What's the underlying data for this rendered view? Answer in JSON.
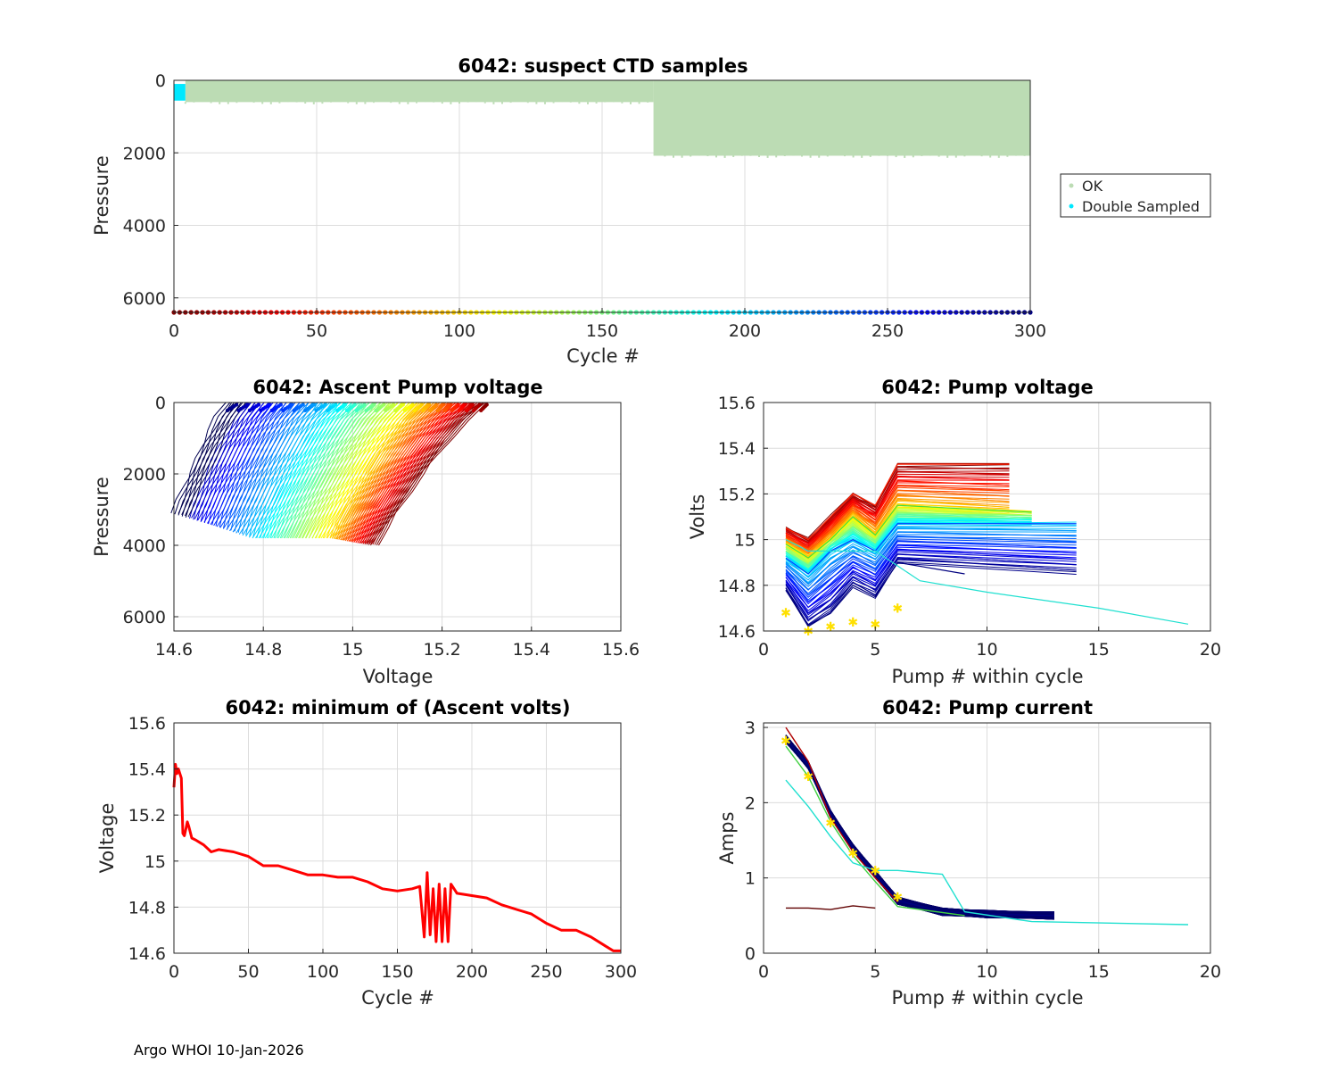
{
  "footer": "Argo WHOI 10-Jan-2026",
  "chart_data": [
    {
      "id": "ctd",
      "type": "scatter",
      "title": "6042: suspect CTD samples",
      "xlabel": "Cycle #",
      "ylabel": "Pressure",
      "xlim": [
        0,
        300
      ],
      "ylim": [
        6400,
        0
      ],
      "xticks": [
        "0",
        "50",
        "100",
        "150",
        "200",
        "250",
        "300"
      ],
      "yticks": [
        "0",
        "2000",
        "4000",
        "6000"
      ],
      "legend": {
        "position": "outside-right",
        "entries": [
          "OK",
          "Double Sampled"
        ],
        "colors": [
          "#bcdcb4",
          "#00e8ff"
        ]
      },
      "series": [
        {
          "name": "OK",
          "color": "#bcdcb4",
          "regions": [
            {
              "x": [
                4,
                168
              ],
              "p": [
                0,
                600
              ]
            },
            {
              "x": [
                168,
                300
              ],
              "p": [
                0,
                2080
              ]
            }
          ]
        },
        {
          "name": "Double Sampled",
          "color": "#00e8ff",
          "regions": [
            {
              "x": [
                0,
                4
              ],
              "p": [
                100,
                560
              ]
            }
          ]
        }
      ],
      "cycle_colorbar": {
        "p": 6400,
        "x": [
          0,
          300
        ]
      }
    },
    {
      "id": "ascent",
      "type": "line",
      "title": "6042: Ascent Pump voltage",
      "xlabel": "Voltage",
      "ylabel": "Pressure",
      "xlim": [
        14.6,
        15.6
      ],
      "ylim": [
        6400,
        0
      ],
      "xticks": [
        "14.6",
        "14.8",
        "15",
        "15.2",
        "15.4",
        "15.6"
      ],
      "yticks": [
        "0",
        "2000",
        "4000",
        "6000"
      ],
      "series": [
        {
          "name": "early cycles (dark red)",
          "v_surface": 15.3,
          "v_deep": 15.05,
          "p_deep": 4000
        },
        {
          "name": "mid cycles (yellow-green)",
          "v_surface": 15.15,
          "v_deep": 14.95,
          "p_deep": 3800
        },
        {
          "name": "late cycles (blue)",
          "v_surface": 14.95,
          "v_deep": 14.78,
          "p_deep": 3800
        },
        {
          "name": "final cycles (dark blue)",
          "v_surface": 14.72,
          "v_deep": 14.6,
          "p_deep": 3100
        }
      ]
    },
    {
      "id": "pumpv",
      "type": "line",
      "title": "6042: Pump voltage",
      "xlabel": "Pump # within cycle",
      "ylabel": "Volts",
      "xlim": [
        0,
        20
      ],
      "ylim": [
        14.6,
        15.6
      ],
      "xticks": [
        "0",
        "5",
        "10",
        "15",
        "20"
      ],
      "yticks": [
        "14.6",
        "14.8",
        "15",
        "15.2",
        "15.4",
        "15.6"
      ],
      "series": [
        {
          "name": "early (red)",
          "x": [
            1,
            2,
            3,
            4,
            5,
            6,
            11
          ],
          "y": [
            15.05,
            15.0,
            15.1,
            15.2,
            15.15,
            15.33,
            15.33
          ]
        },
        {
          "name": "mid (green)",
          "x": [
            1,
            2,
            3,
            4,
            5,
            6,
            12
          ],
          "y": [
            14.98,
            14.92,
            15.0,
            15.1,
            15.02,
            15.15,
            15.12
          ]
        },
        {
          "name": "late (blue)",
          "x": [
            1,
            2,
            3,
            4,
            5,
            6,
            14
          ],
          "y": [
            14.92,
            14.85,
            14.95,
            15.0,
            14.95,
            15.07,
            15.07
          ]
        },
        {
          "name": "final (dark blue)",
          "x": [
            1,
            2,
            3,
            4,
            5,
            6,
            9
          ],
          "y": [
            14.78,
            14.62,
            14.68,
            14.8,
            14.75,
            14.9,
            14.85
          ]
        },
        {
          "name": "cyan outlier",
          "x": [
            1,
            2,
            5,
            7,
            10,
            15,
            19
          ],
          "y": [
            15.0,
            14.95,
            14.95,
            14.82,
            14.77,
            14.7,
            14.63
          ]
        }
      ],
      "last_cycle_stars": {
        "x": [
          1,
          2,
          3,
          4,
          5,
          6
        ],
        "y": [
          14.68,
          14.6,
          14.62,
          14.64,
          14.63,
          14.7
        ]
      }
    },
    {
      "id": "minvolt",
      "type": "line",
      "title": "6042: minimum of (Ascent volts)",
      "xlabel": "Cycle #",
      "ylabel": "Voltage",
      "xlim": [
        0,
        300
      ],
      "ylim": [
        14.6,
        15.6
      ],
      "xticks": [
        "0",
        "50",
        "100",
        "150",
        "200",
        "250",
        "300"
      ],
      "yticks": [
        "14.6",
        "14.8",
        "15",
        "15.2",
        "15.4",
        "15.6"
      ],
      "series": [
        {
          "name": "minimum ascent volts",
          "color": "#ff0000",
          "x": [
            0,
            1,
            2,
            3,
            5,
            6,
            7,
            8,
            9,
            10,
            12,
            15,
            20,
            25,
            30,
            40,
            50,
            60,
            70,
            80,
            90,
            100,
            110,
            120,
            130,
            140,
            150,
            160,
            165,
            168,
            170,
            172,
            174,
            176,
            178,
            180,
            182,
            184,
            186,
            190,
            200,
            210,
            220,
            230,
            240,
            250,
            260,
            270,
            280,
            290,
            295,
            300
          ],
          "y": [
            15.32,
            15.42,
            15.38,
            15.4,
            15.36,
            15.12,
            15.11,
            15.14,
            15.17,
            15.15,
            15.1,
            15.09,
            15.07,
            15.04,
            15.05,
            15.04,
            15.02,
            14.98,
            14.98,
            14.96,
            14.94,
            14.94,
            14.93,
            14.93,
            14.91,
            14.88,
            14.87,
            14.88,
            14.89,
            14.67,
            14.95,
            14.68,
            14.88,
            14.65,
            14.9,
            14.65,
            14.88,
            14.65,
            14.9,
            14.86,
            14.85,
            14.84,
            14.81,
            14.79,
            14.77,
            14.73,
            14.7,
            14.7,
            14.67,
            14.63,
            14.61,
            14.61
          ]
        }
      ]
    },
    {
      "id": "current",
      "type": "line",
      "title": "6042: Pump current",
      "xlabel": "Pump # within cycle",
      "ylabel": "Amps",
      "xlim": [
        0,
        20
      ],
      "ylim": [
        0,
        3.06
      ],
      "xticks": [
        "0",
        "5",
        "10",
        "15",
        "20"
      ],
      "yticks": [
        "0",
        "1",
        "2",
        "3"
      ],
      "series": [
        {
          "name": "typical (dark blue)",
          "x": [
            1,
            2,
            3,
            4,
            5,
            6,
            8,
            10,
            13
          ],
          "y": [
            2.85,
            2.5,
            1.85,
            1.4,
            1.05,
            0.7,
            0.55,
            0.52,
            0.5
          ]
        },
        {
          "name": "early (red)",
          "x": [
            1,
            2,
            3,
            4,
            5,
            6
          ],
          "y": [
            3.0,
            2.55,
            1.8,
            1.35,
            1.0,
            0.68
          ]
        },
        {
          "name": "mid (green)",
          "x": [
            1,
            2,
            3,
            4,
            5,
            6,
            9
          ],
          "y": [
            2.75,
            2.35,
            1.75,
            1.3,
            0.95,
            0.62,
            0.5
          ]
        },
        {
          "name": "cyan outlier",
          "x": [
            1,
            2,
            3,
            4,
            5,
            6,
            8,
            9,
            12,
            19
          ],
          "y": [
            2.3,
            1.95,
            1.55,
            1.2,
            1.1,
            1.1,
            1.05,
            0.55,
            0.42,
            0.38
          ]
        },
        {
          "name": "low (dark red)",
          "x": [
            1,
            2,
            3,
            4,
            5
          ],
          "y": [
            0.6,
            0.6,
            0.58,
            0.63,
            0.6
          ]
        }
      ],
      "last_cycle_stars": {
        "x": [
          1,
          2,
          3,
          4,
          5,
          6
        ],
        "y": [
          2.82,
          2.35,
          1.73,
          1.33,
          1.1,
          0.75
        ]
      }
    }
  ]
}
